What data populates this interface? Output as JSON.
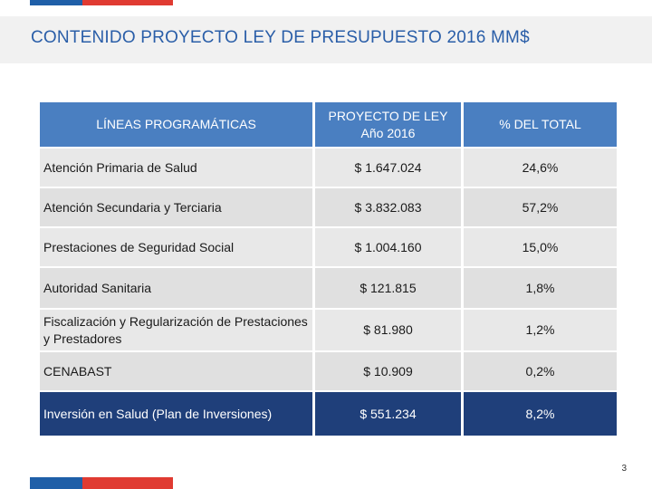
{
  "header": {
    "title": "CONTENIDO PROYECTO LEY DE PRESUPUESTO 2016 MM$"
  },
  "table": {
    "columns": [
      "LÍNEAS PROGRAMÁTICAS",
      "PROYECTO DE LEY Año 2016",
      "% DEL TOTAL"
    ],
    "rows": [
      {
        "line": "Atención Primaria de Salud",
        "amount": "$ 1.647.024",
        "pct": "24,6%"
      },
      {
        "line": "Atención Secundaria y Terciaria",
        "amount": "$ 3.832.083",
        "pct": "57,2%"
      },
      {
        "line": "Prestaciones de Seguridad Social",
        "amount": "$ 1.004.160",
        "pct": "15,0%"
      },
      {
        "line": "Autoridad Sanitaria",
        "amount": "$ 121.815",
        "pct": "1,8%"
      },
      {
        "line": "Fiscalización y Regularización de Prestaciones y Prestadores",
        "amount": "$ 81.980",
        "pct": "1,2%"
      },
      {
        "line": "CENABAST",
        "amount": "$ 10.909",
        "pct": "0,2%"
      },
      {
        "line": "Inversión en Salud (Plan de Inversiones)",
        "amount": "$ 551.234",
        "pct": "8,2%"
      }
    ]
  },
  "footer": {
    "page_number": "3"
  },
  "colors": {
    "header_blue": "#4a7fc1",
    "highlight_navy": "#1f3f7a",
    "title_blue": "#2a5ea8",
    "flag_blue": "#1f5fa8",
    "flag_red": "#e03b32"
  }
}
